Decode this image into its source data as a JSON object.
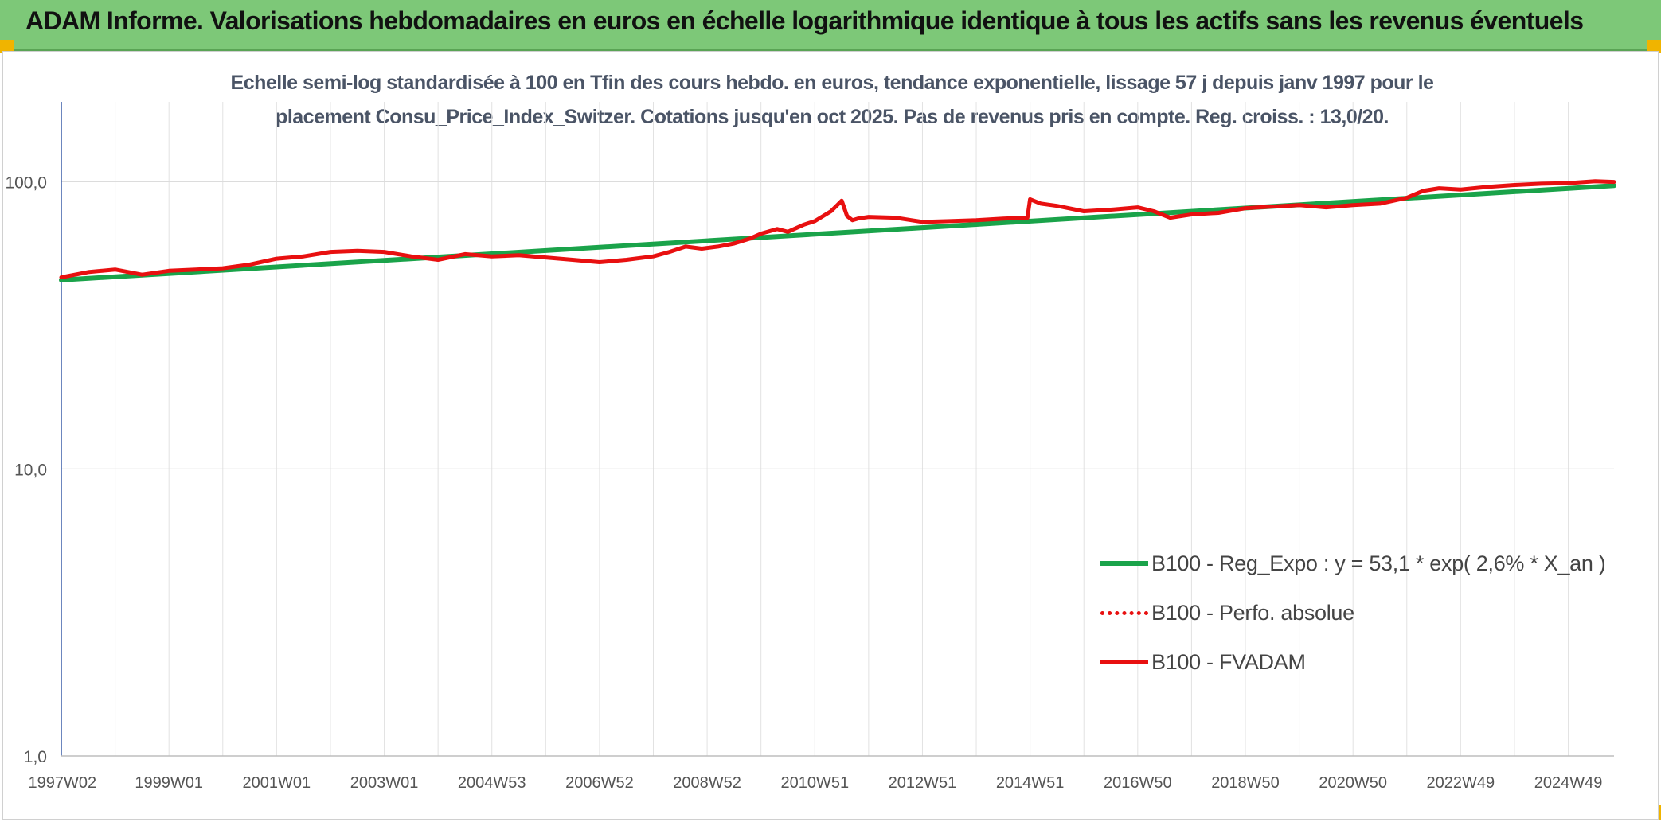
{
  "header": {
    "title": "ADAM Informe. Valorisations hebdomadaires en euros en échelle logarithmique identique à tous les actifs sans les revenus éventuels"
  },
  "colors": {
    "header_bg": "#7dc878",
    "trend": "#1aa34a",
    "series": "#e81010",
    "corner": "#f0b400"
  },
  "chart_data": {
    "type": "line",
    "title_line1": "Echelle semi-log standardisée à 100 en Tfin des cours hebdo. en euros, tendance exponentielle, lissage 57 j depuis janv 1997 pour le",
    "title_line2": "placement Consu_Price_Index_Switzer. Cotations jusqu'en oct 2025. Pas de revenus pris en compte. Reg. croiss. : 13,0/20.",
    "yscale": "log",
    "ylim": [
      1,
      190
    ],
    "yticks": [
      {
        "value": 1,
        "label": "1,0"
      },
      {
        "value": 10,
        "label": "10,0"
      },
      {
        "value": 100,
        "label": "100,0"
      }
    ],
    "xlim": [
      1997.0,
      2025.85
    ],
    "xticks": [
      {
        "value": 1997.02,
        "label": "1997W02"
      },
      {
        "value": 1999.0,
        "label": "1999W01"
      },
      {
        "value": 2001.0,
        "label": "2001W01"
      },
      {
        "value": 2003.0,
        "label": "2003W01"
      },
      {
        "value": 2005.0,
        "label": "2004W53"
      },
      {
        "value": 2007.0,
        "label": "2006W52"
      },
      {
        "value": 2009.0,
        "label": "2008W52"
      },
      {
        "value": 2011.0,
        "label": "2010W51"
      },
      {
        "value": 2013.0,
        "label": "2012W51"
      },
      {
        "value": 2015.0,
        "label": "2014W51"
      },
      {
        "value": 2017.0,
        "label": "2016W50"
      },
      {
        "value": 2019.0,
        "label": "2018W50"
      },
      {
        "value": 2021.0,
        "label": "2020W50"
      },
      {
        "value": 2023.0,
        "label": "2022W49"
      },
      {
        "value": 2025.0,
        "label": "2024W49"
      }
    ],
    "grid": {
      "vertical": true,
      "horizontal": true
    },
    "legend": {
      "position": "bottom-right"
    },
    "series": [
      {
        "name": "B100 - Reg_Expo : y = 53,1 * exp( 2,6% *  X_an )",
        "style": "solid",
        "x": [
          1997.0,
          2025.85
        ],
        "y": [
          45.5,
          97.0
        ]
      },
      {
        "name": "B100 - Perfo. absolue",
        "style": "dotted",
        "x": [],
        "y": []
      },
      {
        "name": "B100 - FVADAM",
        "style": "solid",
        "x": [
          1997.0,
          1997.5,
          1998.0,
          1998.5,
          1999.0,
          1999.5,
          2000.0,
          2000.5,
          2001.0,
          2001.5,
          2002.0,
          2002.5,
          2003.0,
          2003.5,
          2004.0,
          2004.5,
          2005.0,
          2005.5,
          2006.0,
          2006.5,
          2007.0,
          2007.5,
          2008.0,
          2008.3,
          2008.6,
          2008.9,
          2009.2,
          2009.5,
          2009.8,
          2010.0,
          2010.3,
          2010.5,
          2010.8,
          2011.0,
          2011.3,
          2011.5,
          2011.6,
          2011.7,
          2011.8,
          2012.0,
          2012.5,
          2013.0,
          2013.5,
          2014.0,
          2014.5,
          2014.95,
          2015.0,
          2015.2,
          2015.5,
          2016.0,
          2016.5,
          2017.0,
          2017.3,
          2017.6,
          2018.0,
          2018.5,
          2019.0,
          2019.5,
          2020.0,
          2020.5,
          2021.0,
          2021.5,
          2022.0,
          2022.3,
          2022.6,
          2023.0,
          2023.5,
          2024.0,
          2024.5,
          2025.0,
          2025.5,
          2025.85
        ],
        "y": [
          46.5,
          48.5,
          49.5,
          47.5,
          49.0,
          49.5,
          50.0,
          51.5,
          54.0,
          55.0,
          57.0,
          57.5,
          57.0,
          55.0,
          53.5,
          56.0,
          55.0,
          55.5,
          54.5,
          53.5,
          52.5,
          53.5,
          55.0,
          57.0,
          59.5,
          58.5,
          59.5,
          61.0,
          63.5,
          66.0,
          68.5,
          67.0,
          71.0,
          73.0,
          79.0,
          86.0,
          76.0,
          73.5,
          74.5,
          75.5,
          75.0,
          72.5,
          73.0,
          73.5,
          74.5,
          75.0,
          87.0,
          84.0,
          82.5,
          79.0,
          80.0,
          81.5,
          79.0,
          75.0,
          77.0,
          78.0,
          81.0,
          82.0,
          83.0,
          81.5,
          83.0,
          84.0,
          88.0,
          93.0,
          95.0,
          94.0,
          96.0,
          97.5,
          98.5,
          99.0,
          100.5,
          100.0
        ]
      }
    ]
  }
}
